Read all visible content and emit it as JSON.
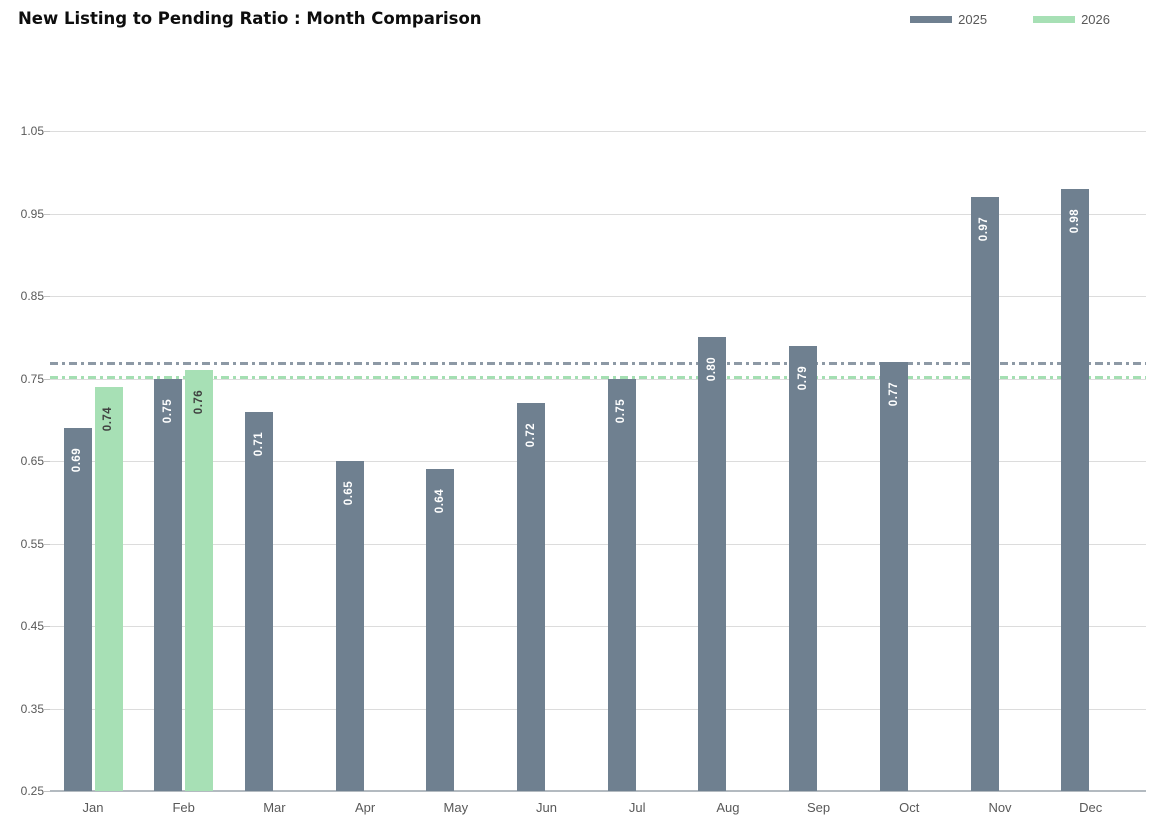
{
  "header": {
    "title": "New Listing to Pending Ratio : Month Comparison"
  },
  "chart_data": {
    "type": "bar",
    "title": "New Listing to Pending Ratio : Month Comparison",
    "categories": [
      "Jan",
      "Feb",
      "Mar",
      "Apr",
      "May",
      "Jun",
      "Jul",
      "Aug",
      "Sep",
      "Oct",
      "Nov",
      "Dec"
    ],
    "series": [
      {
        "name": "2025",
        "color": "#6f8090",
        "label_color": "#ffffff",
        "values": [
          0.69,
          0.75,
          0.71,
          0.65,
          0.64,
          0.72,
          0.75,
          0.8,
          0.79,
          0.77,
          0.97,
          0.98
        ],
        "average": 0.768,
        "average_line_color": "#8d99a5"
      },
      {
        "name": "2026",
        "color": "#a7e0b5",
        "label_color": "#404040",
        "values": [
          0.74,
          0.76,
          null,
          null,
          null,
          null,
          null,
          null,
          null,
          null,
          null,
          null
        ],
        "average": 0.751,
        "average_line_color": "#a4dfb2"
      }
    ],
    "ylim": [
      0.25,
      1.05
    ],
    "yticks": [
      1.05,
      0.95,
      0.85,
      0.75,
      0.65,
      0.55,
      0.45,
      0.35,
      0.25
    ],
    "value_label_format": "0.00",
    "value_label_style": "rotated 90deg, inside top of bar",
    "grid": true,
    "legend_position": "top-right",
    "average_lines": "dash-dot horizontal line per series at series mean"
  },
  "colors": {
    "background": "#ffffff",
    "gridline": "#dcdcdc",
    "axis_line": "#b3bac0",
    "axis_text": "#595959",
    "title_text": "#0d0d0d"
  }
}
